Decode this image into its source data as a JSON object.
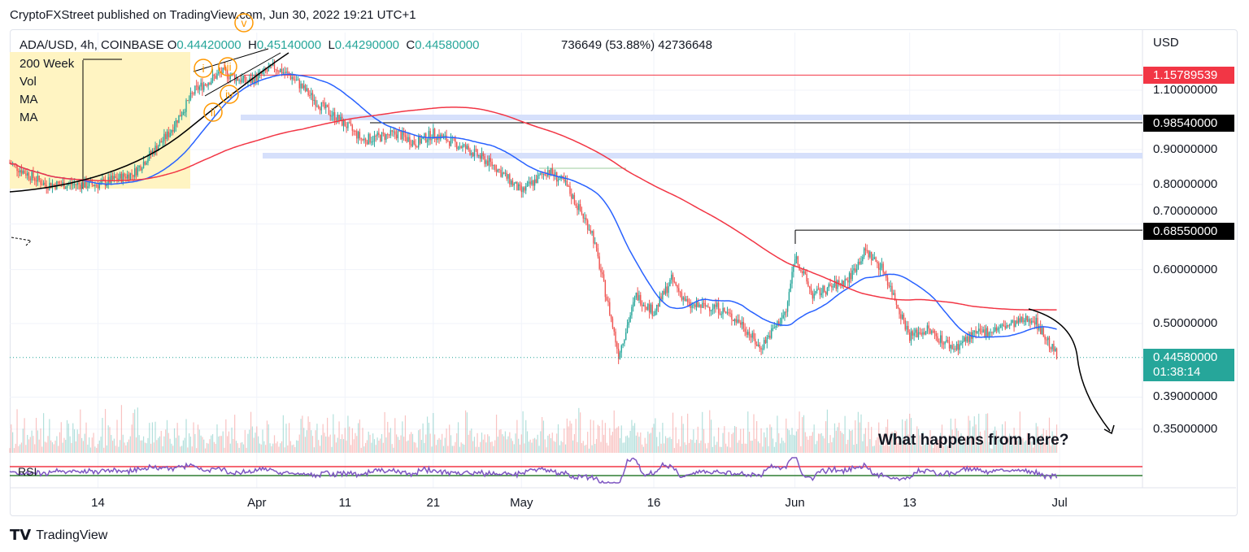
{
  "header": "CryptoFXStreet published on TradingView.com, Jun 30, 2022 19:21 UTC+1",
  "legend": {
    "symbol": "ADA/USD, 4h, COINBASE",
    "o_label": "O",
    "o": "0.44420000",
    "h_label": "H",
    "h": "0.45140000",
    "l_label": "L",
    "l": "0.44290000",
    "c_label": "C",
    "c": "0.44580000",
    "overlap": "736649 (53.88%) 42736648"
  },
  "indicators": [
    "200 Week",
    "Vol",
    "MA",
    "MA"
  ],
  "rsi_label": "RSI",
  "wave_labels": [
    "v",
    "i",
    "iii",
    "iv",
    "ii"
  ],
  "annotation": "What happens from here?",
  "footer": "TradingView",
  "colors": {
    "up": "#26a69a",
    "down": "#ef5350",
    "ma_fast": "#2962ff",
    "ma_slow": "#f23645",
    "rsi": "#7e57c2",
    "last": "#26a69a"
  },
  "chart_data": {
    "type": "candlestick",
    "currency": "USD",
    "scale": "log",
    "yticks": [
      "1.10000000",
      "0.90000000",
      "0.80000000",
      "0.70000000",
      "0.60000000",
      "0.50000000",
      "0.39000000",
      "0.35000000"
    ],
    "ytick_values": [
      1.1,
      0.9,
      0.8,
      0.7,
      0.6,
      0.5,
      0.39,
      0.35
    ],
    "xticks": [
      "14",
      "Apr",
      "11",
      "21",
      "May",
      "16",
      "Jun",
      "13",
      "Jul"
    ],
    "xtick_days": [
      10,
      28,
      38,
      48,
      58,
      73,
      89,
      102,
      119
    ],
    "close_keypoints_day_value": [
      [
        0,
        0.86
      ],
      [
        4,
        0.8
      ],
      [
        10,
        0.8
      ],
      [
        14,
        0.83
      ],
      [
        18,
        0.95
      ],
      [
        21,
        1.1
      ],
      [
        24,
        1.17
      ],
      [
        27,
        1.13
      ],
      [
        30,
        1.19
      ],
      [
        32,
        1.15
      ],
      [
        35,
        1.05
      ],
      [
        38,
        0.98
      ],
      [
        40,
        0.93
      ],
      [
        44,
        0.95
      ],
      [
        46,
        0.92
      ],
      [
        48,
        0.95
      ],
      [
        52,
        0.9
      ],
      [
        55,
        0.85
      ],
      [
        58,
        0.78
      ],
      [
        61,
        0.84
      ],
      [
        63,
        0.8
      ],
      [
        66,
        0.68
      ],
      [
        68,
        0.52
      ],
      [
        69,
        0.45
      ],
      [
        71,
        0.55
      ],
      [
        73,
        0.52
      ],
      [
        75,
        0.58
      ],
      [
        77,
        0.53
      ],
      [
        80,
        0.53
      ],
      [
        83,
        0.5
      ],
      [
        85,
        0.46
      ],
      [
        88,
        0.52
      ],
      [
        89,
        0.63
      ],
      [
        91,
        0.55
      ],
      [
        95,
        0.58
      ],
      [
        97,
        0.64
      ],
      [
        99,
        0.6
      ],
      [
        102,
        0.48
      ],
      [
        104,
        0.49
      ],
      [
        107,
        0.46
      ],
      [
        109,
        0.48
      ],
      [
        114,
        0.5
      ],
      [
        116,
        0.51
      ],
      [
        118.8,
        0.4458
      ]
    ],
    "levels": [
      {
        "label": "1.15789539",
        "value": 1.15789539,
        "color": "#f23645"
      },
      {
        "label": "0.98540000",
        "value": 0.9854,
        "color": "#000000"
      },
      {
        "label": "0.68550000",
        "value": 0.6855,
        "color": "#000000"
      }
    ],
    "last": {
      "price": "0.44580000",
      "value": 0.4458,
      "countdown": "01:38:14"
    }
  }
}
